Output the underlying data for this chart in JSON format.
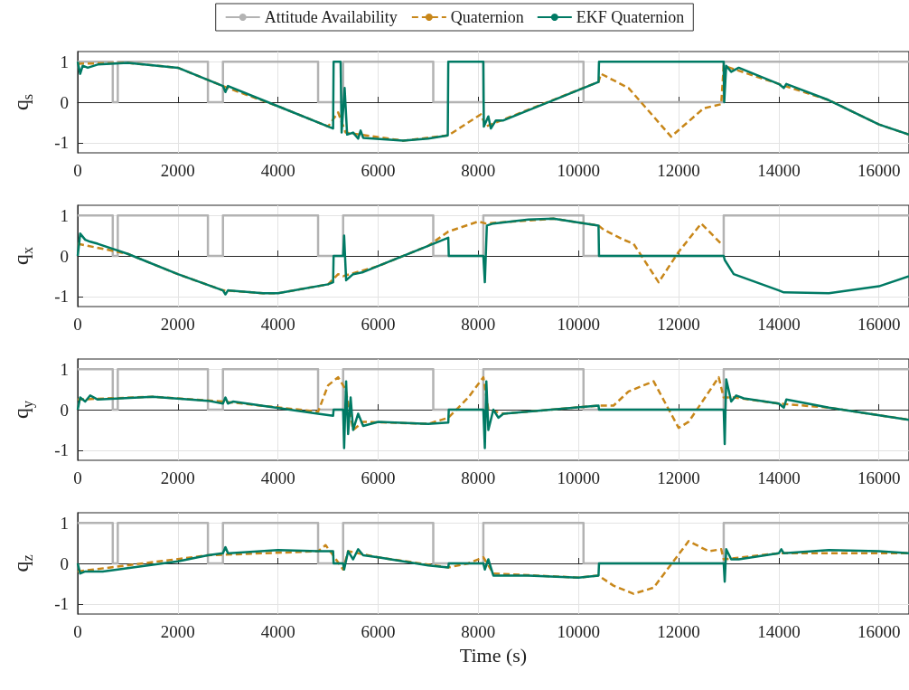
{
  "chart_data": [
    {
      "type": "line",
      "ylabel": "q$_{s}$",
      "xlim": [
        0,
        16600
      ],
      "xticks": [
        0,
        2000,
        4000,
        6000,
        8000,
        10000,
        12000,
        14000,
        16000
      ],
      "ylim": [
        -1.25,
        1.25
      ],
      "yticks": [
        -1,
        0,
        1
      ],
      "grid": true,
      "legend": "top",
      "marker": "none",
      "series": [
        {
          "name": "Attitude Availability",
          "type": "step",
          "color": "#b3b3b3",
          "line_style": "solid",
          "x": [
            0,
            700,
            800,
            2600,
            2900,
            4800,
            5300,
            7100,
            8100,
            10100,
            12900,
            16600
          ],
          "values": [
            1,
            0,
            1,
            0,
            1,
            0,
            1,
            0,
            1,
            0,
            1,
            1
          ]
        },
        {
          "name": "Quaternion",
          "color": "#c8871a",
          "line_style": "dashed",
          "x": [
            0,
            1000,
            2000,
            2600,
            3000,
            4000,
            5000,
            5200,
            5350,
            6500,
            7400,
            8050,
            8150,
            10400,
            10450,
            11000,
            11850,
            12500,
            12850,
            12900,
            14000,
            15000,
            16000,
            16600
          ],
          "values": [
            0.95,
            0.97,
            0.85,
            0.55,
            0.35,
            -0.1,
            -0.6,
            -0.25,
            -0.75,
            -0.95,
            -0.82,
            -0.3,
            -0.6,
            0.5,
            0.7,
            0.35,
            -0.85,
            -0.15,
            -0.05,
            0.9,
            0.45,
            0.05,
            -0.55,
            -0.8
          ]
        },
        {
          "name": "EKF Quaternion",
          "color": "#007a64",
          "line_style": "solid",
          "x": [
            0,
            50,
            100,
            200,
            400,
            1000,
            2000,
            2600,
            2900,
            2950,
            3000,
            4000,
            5000,
            5100,
            5110,
            5250,
            5270,
            5330,
            5380,
            5500,
            5600,
            5650,
            5700,
            6500,
            7000,
            7390,
            7400,
            8100,
            8110,
            8200,
            8250,
            8350,
            8500,
            10400,
            10410,
            12900,
            12910,
            12950,
            13050,
            13200,
            14000,
            14100,
            14150,
            15000,
            16000,
            16600
          ],
          "values": [
            1,
            0.7,
            0.9,
            0.85,
            0.93,
            0.97,
            0.85,
            0.55,
            0.4,
            0.25,
            0.4,
            -0.1,
            -0.6,
            -0.65,
            1,
            1,
            -0.75,
            0.35,
            -0.8,
            -0.75,
            -0.9,
            -0.7,
            -0.88,
            -0.95,
            -0.9,
            -0.82,
            1,
            1,
            -0.6,
            -0.35,
            -0.65,
            -0.45,
            -0.45,
            0.5,
            1,
            1,
            0,
            0.9,
            0.75,
            0.85,
            0.45,
            0.35,
            0.45,
            0.05,
            -0.55,
            -0.8
          ]
        }
      ]
    },
    {
      "type": "line",
      "ylabel": "q$_{x}$",
      "xlim": [
        0,
        16600
      ],
      "xticks": [
        0,
        2000,
        4000,
        6000,
        8000,
        10000,
        12000,
        14000,
        16000
      ],
      "ylim": [
        -1.25,
        1.25
      ],
      "yticks": [
        -1,
        0,
        1
      ],
      "grid": true,
      "marker": "none",
      "series": [
        {
          "type": "step",
          "color": "#b3b3b3",
          "line_style": "solid",
          "x": [
            0,
            700,
            800,
            2600,
            2900,
            4800,
            5300,
            7100,
            8100,
            10100,
            12900,
            16600
          ],
          "values": [
            1,
            0,
            1,
            0,
            1,
            0,
            1,
            0,
            1,
            0,
            1,
            1
          ]
        },
        {
          "color": "#c8871a",
          "line_style": "dashed",
          "x": [
            0,
            1000,
            2000,
            2900,
            3700,
            4000,
            5000,
            5200,
            5300,
            6000,
            7000,
            7400,
            8000,
            8150,
            9500,
            10400,
            10500,
            10900,
            11100,
            11600,
            12000,
            12450,
            12850
          ],
          "values": [
            0.3,
            0.05,
            -0.45,
            -0.85,
            -0.92,
            -0.92,
            -0.7,
            -0.45,
            -0.5,
            -0.25,
            0.25,
            0.6,
            0.85,
            0.8,
            0.92,
            0.75,
            0.65,
            0.4,
            0.3,
            -0.65,
            0.1,
            0.8,
            0.3
          ]
        },
        {
          "color": "#007a64",
          "line_style": "solid",
          "x": [
            0,
            50,
            150,
            250,
            400,
            1000,
            2000,
            2900,
            2950,
            3000,
            3700,
            4000,
            5000,
            5100,
            5110,
            5300,
            5320,
            5360,
            5500,
            5700,
            6000,
            7000,
            7400,
            7410,
            8100,
            8130,
            8170,
            8300,
            9000,
            9500,
            10400,
            10410,
            12900,
            12920,
            13100,
            14000,
            14100,
            15000,
            16000,
            16600
          ],
          "values": [
            0,
            0.55,
            0.4,
            0.35,
            0.3,
            0.05,
            -0.45,
            -0.85,
            -0.95,
            -0.85,
            -0.92,
            -0.92,
            -0.7,
            -0.65,
            0,
            0,
            0.5,
            -0.6,
            -0.45,
            -0.4,
            -0.25,
            0.25,
            0.45,
            0,
            0,
            -0.65,
            0.75,
            0.8,
            0.9,
            0.92,
            0.75,
            0,
            0,
            -0.1,
            -0.45,
            -0.85,
            -0.9,
            -0.92,
            -0.75,
            -0.5
          ]
        }
      ]
    },
    {
      "type": "line",
      "ylabel": "q$_{y}$",
      "xlim": [
        0,
        16600
      ],
      "xticks": [
        0,
        2000,
        4000,
        6000,
        8000,
        10000,
        12000,
        14000,
        16000
      ],
      "ylim": [
        -1.25,
        1.25
      ],
      "yticks": [
        -1,
        0,
        1
      ],
      "grid": true,
      "marker": "none",
      "series": [
        {
          "type": "step",
          "color": "#b3b3b3",
          "line_style": "solid",
          "x": [
            0,
            700,
            800,
            2600,
            2900,
            4800,
            5300,
            7100,
            8100,
            10100,
            12900,
            16600
          ],
          "values": [
            1,
            0,
            1,
            0,
            1,
            0,
            1,
            0,
            1,
            0,
            1,
            1
          ]
        },
        {
          "color": "#c8871a",
          "line_style": "dashed",
          "x": [
            0,
            1500,
            2900,
            4800,
            5000,
            5200,
            5350,
            5500,
            5700,
            7000,
            7400,
            7800,
            8100,
            8200,
            8500,
            10400,
            10700,
            11000,
            11500,
            12000,
            12200,
            12800,
            12900,
            13100,
            14000,
            15000,
            16600
          ],
          "values": [
            0.25,
            0.32,
            0.2,
            -0.05,
            0.6,
            0.8,
            0.5,
            -0.5,
            -0.3,
            -0.35,
            -0.2,
            0.3,
            0.8,
            0,
            -0.1,
            0.1,
            0.1,
            0.45,
            0.7,
            -0.45,
            -0.3,
            0.8,
            0.3,
            0.3,
            0.15,
            0.05,
            -0.25
          ]
        },
        {
          "color": "#007a64",
          "line_style": "solid",
          "x": [
            0,
            50,
            150,
            250,
            400,
            1500,
            2600,
            2900,
            2950,
            3000,
            3100,
            4800,
            5100,
            5110,
            5300,
            5320,
            5360,
            5400,
            5450,
            5500,
            5600,
            5700,
            6000,
            7000,
            7400,
            7410,
            8100,
            8130,
            8160,
            8200,
            8300,
            8400,
            8500,
            10400,
            10410,
            12900,
            12920,
            12950,
            13050,
            13150,
            13300,
            14000,
            14100,
            14150,
            15000,
            16600
          ],
          "values": [
            0,
            0.3,
            0.2,
            0.35,
            0.25,
            0.32,
            0.22,
            0.15,
            0.3,
            0.15,
            0.2,
            -0.1,
            -0.15,
            0,
            0,
            -0.95,
            0.7,
            -0.6,
            0.3,
            -0.5,
            -0.1,
            -0.4,
            -0.3,
            -0.35,
            -0.32,
            0,
            0,
            -0.95,
            0.7,
            -0.5,
            0,
            -0.2,
            -0.1,
            0.1,
            0,
            0,
            -0.85,
            0.75,
            0.2,
            0.35,
            0.28,
            0.15,
            0.05,
            0.25,
            0.05,
            -0.25
          ]
        }
      ]
    },
    {
      "type": "line",
      "ylabel": "q$_{z}$",
      "xlabel": "Time (s)",
      "xlim": [
        0,
        16600
      ],
      "xticks": [
        0,
        2000,
        4000,
        6000,
        8000,
        10000,
        12000,
        14000,
        16000
      ],
      "ylim": [
        -1.25,
        1.25
      ],
      "yticks": [
        -1,
        0,
        1
      ],
      "grid": true,
      "marker": "none",
      "series": [
        {
          "type": "step",
          "color": "#b3b3b3",
          "line_style": "solid",
          "x": [
            0,
            700,
            800,
            2600,
            2900,
            4800,
            5300,
            7100,
            8100,
            10100,
            12900,
            16600
          ],
          "values": [
            1,
            0,
            1,
            0,
            1,
            0,
            1,
            0,
            1,
            0,
            1,
            1
          ]
        },
        {
          "color": "#c8871a",
          "line_style": "dashed",
          "x": [
            0,
            2600,
            4800,
            4950,
            5100,
            5300,
            5400,
            6000,
            7400,
            7800,
            8100,
            8300,
            10000,
            10400,
            10700,
            11100,
            11500,
            12200,
            12600,
            12850,
            12900,
            14000,
            16600
          ],
          "values": [
            -0.2,
            0.2,
            0.3,
            0.45,
            0.2,
            -0.15,
            0.3,
            0.15,
            -0.1,
            0,
            0.15,
            -0.25,
            -0.35,
            -0.3,
            -0.55,
            -0.75,
            -0.6,
            0.55,
            0.3,
            0.35,
            0.1,
            0.25,
            0.25
          ]
        },
        {
          "color": "#007a64",
          "line_style": "solid",
          "x": [
            0,
            50,
            150,
            500,
            2000,
            2600,
            2900,
            2950,
            3000,
            4000,
            4800,
            5100,
            5110,
            5300,
            5320,
            5400,
            5500,
            5600,
            5700,
            6000,
            7000,
            7400,
            7410,
            8100,
            8130,
            8200,
            8300,
            8500,
            9000,
            10000,
            10400,
            10410,
            12900,
            12920,
            12950,
            13050,
            13200,
            14000,
            14050,
            14100,
            15000,
            16000,
            16600
          ],
          "values": [
            0,
            -0.25,
            -0.2,
            -0.2,
            0.05,
            0.2,
            0.25,
            0.4,
            0.25,
            0.33,
            0.3,
            0.3,
            0,
            0,
            -0.15,
            0.3,
            0.1,
            0.35,
            0.2,
            0.15,
            -0.05,
            -0.1,
            0,
            0,
            -0.15,
            0.1,
            -0.3,
            -0.3,
            -0.3,
            -0.35,
            -0.3,
            0,
            0,
            -0.45,
            0.35,
            0.1,
            0.1,
            0.25,
            0.35,
            0.25,
            0.33,
            0.3,
            0.25
          ]
        }
      ]
    }
  ]
}
